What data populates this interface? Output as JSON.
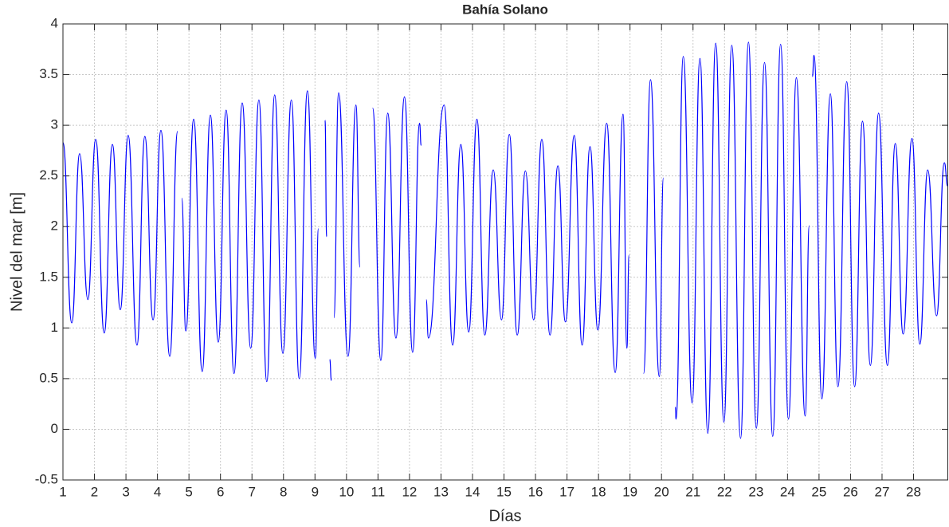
{
  "chart_data": {
    "type": "line",
    "title": "Bahía Solano",
    "xlabel": "Días",
    "ylabel": "Nivel del mar [m]",
    "xlim": [
      1,
      29.1
    ],
    "ylim": [
      -0.5,
      4
    ],
    "xticks": [
      1,
      2,
      3,
      4,
      5,
      6,
      7,
      8,
      9,
      10,
      11,
      12,
      13,
      14,
      15,
      16,
      17,
      18,
      19,
      20,
      21,
      22,
      23,
      24,
      25,
      26,
      27,
      28
    ],
    "yticks": [
      -0.5,
      0,
      0.5,
      1,
      1.5,
      2,
      2.5,
      3,
      3.5,
      4
    ],
    "grid": true,
    "series": [
      {
        "color": "#0000ff",
        "x": [
          1.0,
          1.28,
          1.53,
          1.79,
          2.04,
          2.31,
          2.57,
          2.82,
          3.07,
          3.35,
          3.6,
          3.86,
          4.11,
          4.39,
          4.64,
          null,
          4.77,
          4.9,
          5.15,
          5.42,
          5.68,
          5.93,
          6.18,
          6.43,
          6.69,
          6.96,
          7.22,
          7.47,
          7.72,
          7.98,
          8.25,
          8.5,
          8.76,
          9.01,
          9.11,
          null,
          9.32,
          9.37,
          null,
          9.47,
          9.52,
          null,
          9.6,
          9.75,
          10.05,
          10.3,
          10.43,
          null,
          10.83,
          11.09,
          11.31,
          11.57,
          11.84,
          12.1,
          12.32,
          12.37,
          null,
          12.53,
          12.6,
          13.1,
          13.37,
          13.63,
          13.88,
          14.14,
          14.39,
          14.66,
          14.92,
          15.17,
          15.42,
          15.68,
          15.94,
          16.2,
          16.46,
          16.71,
          16.95,
          17.23,
          17.48,
          17.73,
          17.98,
          18.26,
          18.53,
          18.78,
          18.9,
          18.97,
          null,
          19.43,
          19.65,
          19.93,
          20.06,
          null,
          20.44,
          20.46,
          20.69,
          20.97,
          21.22,
          21.47,
          21.72,
          21.98,
          22.23,
          22.51,
          22.76,
          23.01,
          23.27,
          23.53,
          23.78,
          24.03,
          24.28,
          24.56,
          24.69,
          null,
          24.79,
          24.84,
          25.09,
          25.36,
          25.6,
          25.88,
          26.13,
          26.38,
          26.63,
          26.89,
          27.17,
          27.42,
          27.67,
          27.95,
          28.2,
          28.45,
          28.73,
          28.98,
          29.08
        ],
        "values": [
          2.83,
          1.05,
          2.72,
          1.28,
          2.86,
          0.95,
          2.81,
          1.18,
          2.9,
          0.83,
          2.89,
          1.08,
          2.95,
          0.72,
          2.94,
          null,
          2.28,
          0.97,
          3.06,
          0.57,
          3.1,
          0.86,
          3.15,
          0.55,
          3.22,
          0.8,
          3.25,
          0.47,
          3.3,
          0.75,
          3.25,
          0.5,
          3.34,
          0.7,
          1.98,
          null,
          3.05,
          1.9,
          null,
          0.69,
          0.48,
          null,
          1.1,
          3.32,
          0.72,
          3.2,
          1.6,
          null,
          3.17,
          0.68,
          3.12,
          0.9,
          3.28,
          0.76,
          3.02,
          2.8,
          null,
          1.28,
          0.9,
          3.2,
          0.83,
          2.81,
          0.96,
          3.06,
          0.93,
          2.56,
          1.08,
          2.91,
          0.93,
          2.55,
          1.08,
          2.86,
          0.93,
          2.6,
          1.06,
          2.9,
          0.83,
          2.79,
          0.98,
          3.02,
          0.56,
          3.11,
          0.8,
          1.72,
          null,
          0.55,
          3.45,
          0.52,
          2.48,
          null,
          0.22,
          0.1,
          3.68,
          0.26,
          3.66,
          -0.04,
          3.81,
          0.07,
          3.79,
          -0.09,
          3.82,
          0.01,
          3.62,
          -0.07,
          3.8,
          0.1,
          3.47,
          0.13,
          2.01,
          null,
          3.48,
          3.69,
          0.3,
          3.31,
          0.42,
          3.43,
          0.42,
          3.04,
          0.63,
          3.12,
          0.63,
          2.82,
          0.94,
          2.87,
          0.84,
          2.56,
          1.12,
          2.63,
          2.4
        ]
      }
    ]
  }
}
